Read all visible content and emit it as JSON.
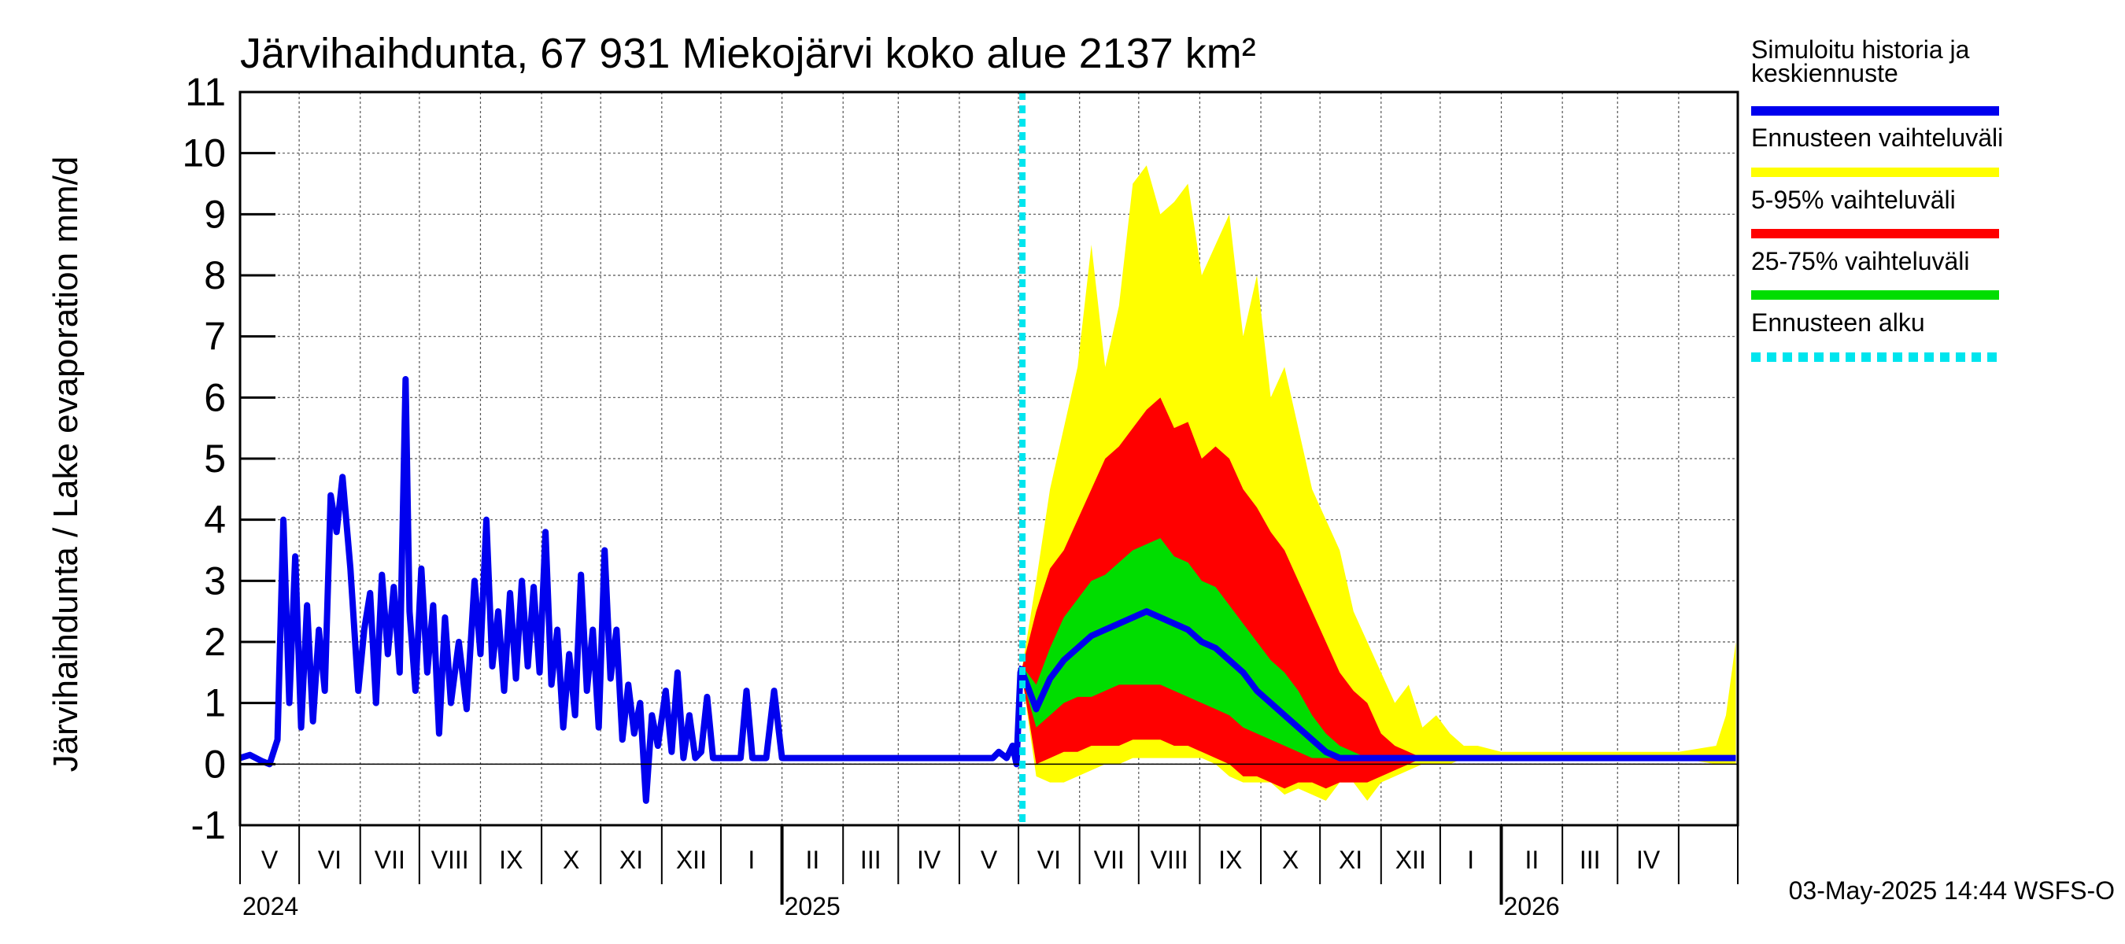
{
  "chart_data": {
    "type": "area",
    "title": "Järvihaihdunta, 67 931 Miekojärvi koko alue 2137 km²",
    "ylabel": "Järvihaihdunta / Lake evaporation   mm/d",
    "ylim": [
      -1,
      11
    ],
    "yticks": [
      "-1",
      "0",
      "1",
      "2",
      "3",
      "4",
      "5",
      "6",
      "7",
      "8",
      "9",
      "10",
      "11"
    ],
    "xlim": [
      "2024-04-01",
      "2026-05-01"
    ],
    "month_labels": [
      "V",
      "VI",
      "VII",
      "VIII",
      "IX",
      "X",
      "XI",
      "XII",
      "I",
      "II",
      "III",
      "IV",
      "V",
      "VI",
      "VII",
      "VIII",
      "IX",
      "X",
      "XI",
      "XII",
      "I",
      "II",
      "III",
      "IV"
    ],
    "year_labels": [
      "2024",
      "2025",
      "2026"
    ],
    "forecast_start": "2025-05-03",
    "grid": true,
    "legend_position": "right",
    "legend": [
      {
        "label": "Simuloitu historia ja keskiennuste",
        "color": "#0000ee"
      },
      {
        "label": "Ennusteen vaihteluväli",
        "color": "#ffff00"
      },
      {
        "label": "5-95% vaihteluväli",
        "color": "#ff0000"
      },
      {
        "label": "25-75% vaihteluväli",
        "color": "#00dd00"
      },
      {
        "label": "Ennusteen alku",
        "color": "#00e5ee"
      }
    ],
    "history": {
      "name": "Simuloitu historia ja keskiennuste",
      "color": "#0000ee",
      "points": [
        [
          "2024-04-01",
          0.1
        ],
        [
          "2024-04-06",
          0.15
        ],
        [
          "2024-04-12",
          0.05
        ],
        [
          "2024-04-16",
          0.0
        ],
        [
          "2024-04-20",
          0.4
        ],
        [
          "2024-04-23",
          4.0
        ],
        [
          "2024-04-26",
          1.0
        ],
        [
          "2024-04-29",
          3.4
        ],
        [
          "2024-05-02",
          0.6
        ],
        [
          "2024-05-05",
          2.6
        ],
        [
          "2024-05-08",
          0.7
        ],
        [
          "2024-05-11",
          2.2
        ],
        [
          "2024-05-14",
          1.2
        ],
        [
          "2024-05-17",
          4.4
        ],
        [
          "2024-05-20",
          3.8
        ],
        [
          "2024-05-23",
          4.7
        ],
        [
          "2024-05-27",
          3.2
        ],
        [
          "2024-05-31",
          1.2
        ],
        [
          "2024-06-03",
          2.2
        ],
        [
          "2024-06-06",
          2.8
        ],
        [
          "2024-06-09",
          1.0
        ],
        [
          "2024-06-12",
          3.1
        ],
        [
          "2024-06-15",
          1.8
        ],
        [
          "2024-06-18",
          2.9
        ],
        [
          "2024-06-21",
          1.5
        ],
        [
          "2024-06-24",
          6.3
        ],
        [
          "2024-06-26",
          2.5
        ],
        [
          "2024-06-29",
          1.2
        ],
        [
          "2024-07-02",
          3.2
        ],
        [
          "2024-07-05",
          1.5
        ],
        [
          "2024-07-08",
          2.6
        ],
        [
          "2024-07-11",
          0.5
        ],
        [
          "2024-07-14",
          2.4
        ],
        [
          "2024-07-17",
          1.0
        ],
        [
          "2024-07-21",
          2.0
        ],
        [
          "2024-07-25",
          0.9
        ],
        [
          "2024-07-29",
          3.0
        ],
        [
          "2024-08-01",
          1.8
        ],
        [
          "2024-08-04",
          4.0
        ],
        [
          "2024-08-07",
          1.6
        ],
        [
          "2024-08-10",
          2.5
        ],
        [
          "2024-08-13",
          1.2
        ],
        [
          "2024-08-16",
          2.8
        ],
        [
          "2024-08-19",
          1.4
        ],
        [
          "2024-08-22",
          3.0
        ],
        [
          "2024-08-25",
          1.6
        ],
        [
          "2024-08-28",
          2.9
        ],
        [
          "2024-08-31",
          1.5
        ],
        [
          "2024-09-03",
          3.8
        ],
        [
          "2024-09-06",
          1.3
        ],
        [
          "2024-09-09",
          2.2
        ],
        [
          "2024-09-12",
          0.6
        ],
        [
          "2024-09-15",
          1.8
        ],
        [
          "2024-09-18",
          0.8
        ],
        [
          "2024-09-21",
          3.1
        ],
        [
          "2024-09-24",
          1.2
        ],
        [
          "2024-09-27",
          2.2
        ],
        [
          "2024-09-30",
          0.6
        ],
        [
          "2024-10-03",
          3.5
        ],
        [
          "2024-10-06",
          1.4
        ],
        [
          "2024-10-09",
          2.2
        ],
        [
          "2024-10-12",
          0.4
        ],
        [
          "2024-10-15",
          1.3
        ],
        [
          "2024-10-18",
          0.5
        ],
        [
          "2024-10-21",
          1.0
        ],
        [
          "2024-10-24",
          -0.6
        ],
        [
          "2024-10-27",
          0.8
        ],
        [
          "2024-10-30",
          0.3
        ],
        [
          "2024-11-03",
          1.2
        ],
        [
          "2024-11-06",
          0.2
        ],
        [
          "2024-11-09",
          1.5
        ],
        [
          "2024-11-12",
          0.1
        ],
        [
          "2024-11-15",
          0.8
        ],
        [
          "2024-11-18",
          0.1
        ],
        [
          "2024-11-21",
          0.2
        ],
        [
          "2024-11-24",
          1.1
        ],
        [
          "2024-11-27",
          0.1
        ],
        [
          "2024-12-01",
          0.1
        ],
        [
          "2024-12-06",
          0.1
        ],
        [
          "2024-12-11",
          0.1
        ],
        [
          "2024-12-14",
          1.2
        ],
        [
          "2024-12-17",
          0.1
        ],
        [
          "2024-12-24",
          0.1
        ],
        [
          "2024-12-28",
          1.2
        ],
        [
          "2025-01-01",
          0.1
        ],
        [
          "2025-01-15",
          0.1
        ],
        [
          "2025-02-01",
          0.1
        ],
        [
          "2025-02-15",
          0.1
        ],
        [
          "2025-03-01",
          0.1
        ],
        [
          "2025-03-15",
          0.1
        ],
        [
          "2025-04-01",
          0.1
        ],
        [
          "2025-04-18",
          0.1
        ],
        [
          "2025-04-21",
          0.2
        ],
        [
          "2025-04-25",
          0.1
        ],
        [
          "2025-04-28",
          0.3
        ],
        [
          "2025-04-30",
          0.0
        ],
        [
          "2025-05-02",
          1.5
        ],
        [
          "2025-05-03",
          1.6
        ]
      ]
    },
    "forecast_dates": [
      "2025-05-03",
      "2025-05-10",
      "2025-05-17",
      "2025-05-24",
      "2025-05-31",
      "2025-06-07",
      "2025-06-14",
      "2025-06-21",
      "2025-06-28",
      "2025-07-05",
      "2025-07-12",
      "2025-07-19",
      "2025-07-26",
      "2025-08-02",
      "2025-08-09",
      "2025-08-16",
      "2025-08-23",
      "2025-08-30",
      "2025-09-06",
      "2025-09-13",
      "2025-09-20",
      "2025-09-27",
      "2025-10-04",
      "2025-10-11",
      "2025-10-18",
      "2025-10-25",
      "2025-11-01",
      "2025-11-08",
      "2025-11-15",
      "2025-11-22",
      "2025-11-29",
      "2025-12-06",
      "2025-12-13",
      "2025-12-20",
      "2026-01-01",
      "2026-02-01",
      "2026-03-01",
      "2026-04-01",
      "2026-04-20",
      "2026-04-25",
      "2026-04-30"
    ],
    "forecast": [
      {
        "name": "Ennusteen vaihteluväli",
        "color": "#ffff00",
        "upper": [
          1.6,
          3.0,
          4.5,
          5.5,
          6.5,
          8.5,
          6.5,
          7.5,
          9.5,
          9.8,
          9.0,
          9.2,
          9.5,
          8.0,
          8.5,
          9.0,
          7.0,
          8.0,
          6.0,
          6.5,
          5.5,
          4.5,
          4.0,
          3.5,
          2.5,
          2.0,
          1.5,
          1.0,
          1.3,
          0.6,
          0.8,
          0.5,
          0.3,
          0.3,
          0.2,
          0.2,
          0.2,
          0.2,
          0.3,
          0.8,
          2.0
        ],
        "lower": [
          1.4,
          -0.2,
          -0.3,
          -0.3,
          -0.2,
          -0.1,
          0.0,
          0.0,
          0.1,
          0.1,
          0.1,
          0.1,
          0.1,
          0.1,
          0.0,
          -0.2,
          -0.3,
          -0.3,
          -0.3,
          -0.5,
          -0.4,
          -0.5,
          -0.6,
          -0.3,
          -0.3,
          -0.6,
          -0.3,
          -0.2,
          -0.1,
          0.0,
          0.0,
          0.0,
          0.1,
          0.1,
          0.1,
          0.1,
          0.1,
          0.1,
          0.0,
          0.0,
          0.0
        ]
      },
      {
        "name": "5-95% vaihteluväli",
        "color": "#ff0000",
        "upper": [
          1.6,
          2.5,
          3.2,
          3.5,
          4.0,
          4.5,
          5.0,
          5.2,
          5.5,
          5.8,
          6.0,
          5.5,
          5.6,
          5.0,
          5.2,
          5.0,
          4.5,
          4.2,
          3.8,
          3.5,
          3.0,
          2.5,
          2.0,
          1.5,
          1.2,
          1.0,
          0.5,
          0.3,
          0.2,
          0.1,
          0.1,
          0.1,
          0.1,
          0.1,
          0.1,
          0.1,
          0.1,
          0.1,
          0.1,
          0.1,
          0.1
        ],
        "lower": [
          1.4,
          0.0,
          0.1,
          0.2,
          0.2,
          0.3,
          0.3,
          0.3,
          0.4,
          0.4,
          0.4,
          0.3,
          0.3,
          0.2,
          0.1,
          0.0,
          -0.2,
          -0.2,
          -0.3,
          -0.4,
          -0.3,
          -0.3,
          -0.4,
          -0.3,
          -0.3,
          -0.3,
          -0.2,
          -0.1,
          0.0,
          0.1,
          0.1,
          0.1,
          0.1,
          0.1,
          0.1,
          0.1,
          0.1,
          0.1,
          0.1,
          0.1,
          0.1
        ]
      },
      {
        "name": "25-75% vaihteluväli",
        "color": "#00dd00",
        "upper": [
          1.6,
          1.3,
          1.9,
          2.4,
          2.7,
          3.0,
          3.1,
          3.3,
          3.5,
          3.6,
          3.7,
          3.4,
          3.3,
          3.0,
          2.9,
          2.6,
          2.3,
          2.0,
          1.7,
          1.5,
          1.2,
          0.8,
          0.5,
          0.3,
          0.2,
          0.1,
          0.1,
          0.1,
          0.1,
          0.1,
          0.1,
          0.1,
          0.1,
          0.1,
          0.1,
          0.1,
          0.1,
          0.1,
          0.1,
          0.1,
          0.1
        ],
        "lower": [
          1.4,
          0.6,
          0.8,
          1.0,
          1.1,
          1.1,
          1.2,
          1.3,
          1.3,
          1.3,
          1.3,
          1.2,
          1.1,
          1.0,
          0.9,
          0.8,
          0.6,
          0.5,
          0.4,
          0.3,
          0.2,
          0.1,
          0.1,
          0.1,
          0.1,
          0.1,
          0.1,
          0.1,
          0.1,
          0.1,
          0.1,
          0.1,
          0.1,
          0.1,
          0.1,
          0.1,
          0.1,
          0.1,
          0.1,
          0.1,
          0.1
        ]
      },
      {
        "name": "Simuloitu historia ja keskiennuste",
        "color": "#0000ee",
        "median": [
          1.5,
          0.9,
          1.4,
          1.7,
          1.9,
          2.1,
          2.2,
          2.3,
          2.4,
          2.5,
          2.4,
          2.3,
          2.2,
          2.0,
          1.9,
          1.7,
          1.5,
          1.2,
          1.0,
          0.8,
          0.6,
          0.4,
          0.2,
          0.1,
          0.1,
          0.1,
          0.1,
          0.1,
          0.1,
          0.1,
          0.1,
          0.1,
          0.1,
          0.1,
          0.1,
          0.1,
          0.1,
          0.1,
          0.1,
          0.1,
          0.1
        ]
      }
    ]
  },
  "footer": {
    "timestamp": "03-May-2025 14:44 WSFS-O"
  }
}
